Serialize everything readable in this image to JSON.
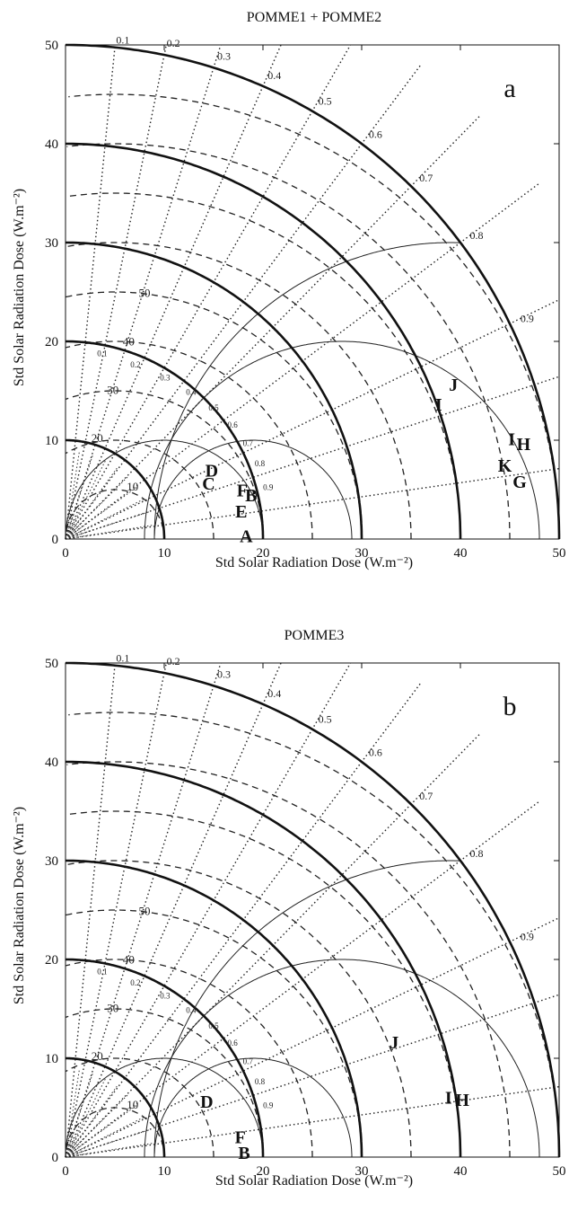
{
  "chart_data": [
    {
      "type": "scatter",
      "title": "POMME1 + POMME2",
      "panel_label": "a",
      "xlabel": "Std Solar Radiation Dose (W.m⁻²)",
      "ylabel": "Std Solar Radiation Dose (W.m⁻²)",
      "xlim": [
        0,
        50
      ],
      "ylim": [
        0,
        50
      ],
      "xticks": [
        "0",
        "10",
        "20",
        "30",
        "40",
        "50"
      ],
      "yticks": [
        "0",
        "10",
        "20",
        "30",
        "40",
        "50"
      ],
      "std_arc_labels": [
        "10",
        "20",
        "30",
        "40",
        "50"
      ],
      "correlation_labels": [
        "0.1",
        "0.2",
        "0.3",
        "0.4",
        "0.5",
        "0.6",
        "0.7",
        "0.8",
        "0.9"
      ],
      "inner_correlation_labels": [
        "0.1",
        "0.2",
        "0.3",
        "0.4",
        "0.5",
        "0.6",
        "0.7",
        "0.8",
        "0.9"
      ],
      "points": [
        {
          "label": "A",
          "x": 18.3,
          "y": -0.3
        },
        {
          "label": "B",
          "x": 18.8,
          "y": 3.8
        },
        {
          "label": "C",
          "x": 14.5,
          "y": 5.0
        },
        {
          "label": "D",
          "x": 14.8,
          "y": 6.3
        },
        {
          "label": "E",
          "x": 17.8,
          "y": 2.2
        },
        {
          "label": "F",
          "x": 17.9,
          "y": 4.3
        },
        {
          "label": "G",
          "x": 46.0,
          "y": 5.2
        },
        {
          "label": "H",
          "x": 46.4,
          "y": 9.0
        },
        {
          "label": "I",
          "x": 37.8,
          "y": 13.0
        },
        {
          "label": "I",
          "x": 45.2,
          "y": 9.5
        },
        {
          "label": "J",
          "x": 39.3,
          "y": 15.0
        },
        {
          "label": "K",
          "x": 44.5,
          "y": 6.8
        }
      ]
    },
    {
      "type": "scatter",
      "title": "POMME3",
      "panel_label": "b",
      "xlabel": "Std Solar Radiation Dose (W.m⁻²)",
      "ylabel": "Std Solar Radiation Dose (W.m⁻²)",
      "xlim": [
        0,
        50
      ],
      "ylim": [
        0,
        50
      ],
      "xticks": [
        "0",
        "10",
        "20",
        "30",
        "40",
        "50"
      ],
      "yticks": [
        "0",
        "10",
        "20",
        "30",
        "40",
        "50"
      ],
      "std_arc_labels": [
        "10",
        "20",
        "30",
        "40",
        "50"
      ],
      "correlation_labels": [
        "0.1",
        "0.2",
        "0.3",
        "0.4",
        "0.5",
        "0.6",
        "0.7",
        "0.8",
        "0.9"
      ],
      "inner_correlation_labels": [
        "0.1",
        "0.2",
        "0.3",
        "0.4",
        "0.5",
        "0.6",
        "0.7",
        "0.8",
        "0.9"
      ],
      "points": [
        {
          "label": "B",
          "x": 18.1,
          "y": -0.2
        },
        {
          "label": "D",
          "x": 14.3,
          "y": 5.0
        },
        {
          "label": "F",
          "x": 17.7,
          "y": 1.4
        },
        {
          "label": "H",
          "x": 40.2,
          "y": 5.2
        },
        {
          "label": "I",
          "x": 38.8,
          "y": 5.4
        },
        {
          "label": "J",
          "x": 33.3,
          "y": 11.0
        }
      ]
    }
  ]
}
